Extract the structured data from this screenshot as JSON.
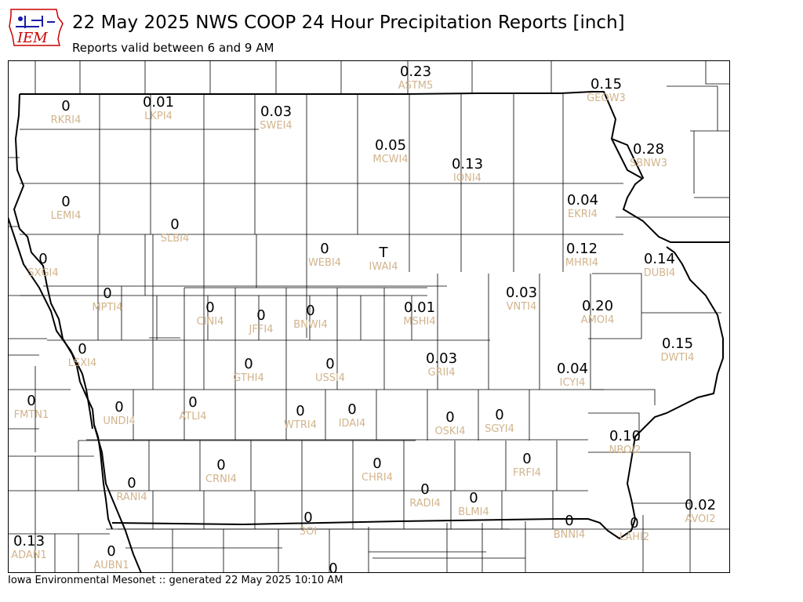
{
  "title": "22 May 2025 NWS COOP 24 Hour Precipitation Reports [inch]",
  "subtitle": "Reports valid between 6 and 9 AM",
  "logo_text": "IEM",
  "footer": "Iowa Environmental Mesonet :: generated 22 May 2025 10:10 AM",
  "colors": {
    "value": "#000000",
    "station_id": "#d2b48c",
    "logo": "#cc0000"
  },
  "reports": [
    {
      "id": "ASTM5",
      "value": "0.23"
    },
    {
      "id": "GEOW3",
      "value": "0.15"
    },
    {
      "id": "RKRI4",
      "value": "0"
    },
    {
      "id": "LKPI4",
      "value": "0.01"
    },
    {
      "id": "SWEI4",
      "value": "0.03"
    },
    {
      "id": "SBNW3",
      "value": "0.28"
    },
    {
      "id": "MCWI4",
      "value": "0.05"
    },
    {
      "id": "IONI4",
      "value": "0.13"
    },
    {
      "id": "LEMI4",
      "value": "0"
    },
    {
      "id": "EKRI4",
      "value": "0.04"
    },
    {
      "id": "SLBI4",
      "value": "0"
    },
    {
      "id": "SXGI4",
      "value": "0"
    },
    {
      "id": "WEBI4",
      "value": "0"
    },
    {
      "id": "IWAI4",
      "value": "T"
    },
    {
      "id": "MHRI4",
      "value": "0.12"
    },
    {
      "id": "DUBI4",
      "value": "0.14"
    },
    {
      "id": "MPTI4",
      "value": "0"
    },
    {
      "id": "CINI4",
      "value": "0"
    },
    {
      "id": "JFFI4",
      "value": "0"
    },
    {
      "id": "BNWI4",
      "value": "0"
    },
    {
      "id": "MSHI4",
      "value": "0.01"
    },
    {
      "id": "VNTI4",
      "value": "0.03"
    },
    {
      "id": "AMOI4",
      "value": "0.20"
    },
    {
      "id": "LSXI4",
      "value": "0"
    },
    {
      "id": "DWTI4",
      "value": "0.15"
    },
    {
      "id": "GTHI4",
      "value": "0"
    },
    {
      "id": "USSI4",
      "value": "0"
    },
    {
      "id": "GRII4",
      "value": "0.03"
    },
    {
      "id": "ICYI4",
      "value": "0.04"
    },
    {
      "id": "FMTN1",
      "value": "0"
    },
    {
      "id": "UNDI4",
      "value": "0"
    },
    {
      "id": "ATLI4",
      "value": "0"
    },
    {
      "id": "WTRI4",
      "value": "0"
    },
    {
      "id": "IDAI4",
      "value": "0"
    },
    {
      "id": "OSKI4",
      "value": "0"
    },
    {
      "id": "SGYI4",
      "value": "0"
    },
    {
      "id": "NBOI2",
      "value": "0.10"
    },
    {
      "id": "CRNI4",
      "value": "0"
    },
    {
      "id": "CHRI4",
      "value": "0"
    },
    {
      "id": "FRFI4",
      "value": "0"
    },
    {
      "id": "RANI4",
      "value": "0"
    },
    {
      "id": "RADI4",
      "value": "0"
    },
    {
      "id": "BLMI4",
      "value": "0"
    },
    {
      "id": "AVOI2",
      "value": "0.02"
    },
    {
      "id": "3OI",
      "value": "0"
    },
    {
      "id": "BNNI4",
      "value": "0"
    },
    {
      "id": "LAHI2",
      "value": "0"
    },
    {
      "id": "ADAN1",
      "value": "0.13"
    },
    {
      "id": "AUBN1",
      "value": "0"
    }
  ],
  "unlabeled_values": [
    "0"
  ]
}
